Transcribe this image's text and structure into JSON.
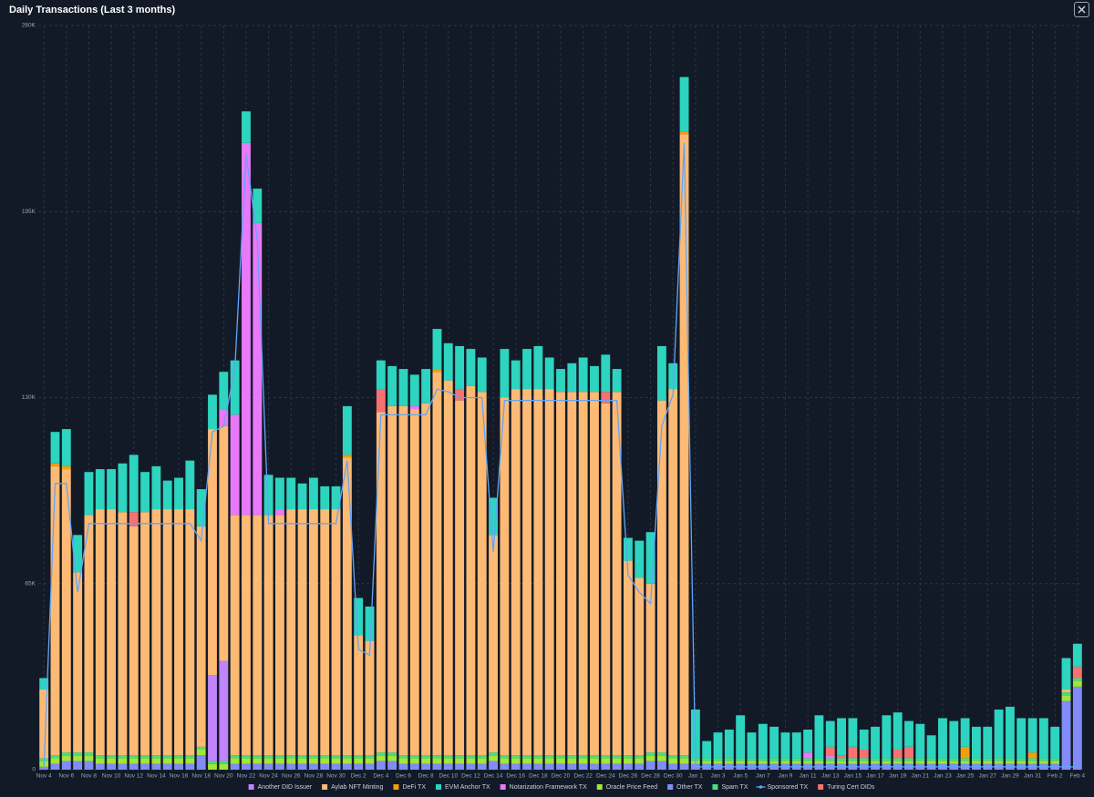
{
  "chart_data": {
    "type": "bar",
    "stacked": true,
    "title": "Daily Transactions (Last 3 months)",
    "categories": [
      "Nov 4",
      null,
      "Nov 6",
      null,
      "Nov 8",
      null,
      "Nov 10",
      null,
      "Nov 12",
      null,
      "Nov 14",
      null,
      "Nov 16",
      null,
      "Nov 18",
      null,
      "Nov 20",
      null,
      "Nov 22",
      null,
      "Nov 24",
      null,
      "Nov 26",
      null,
      "Nov 28",
      null,
      "Nov 30",
      null,
      "Dec 2",
      null,
      "Dec 4",
      null,
      "Dec 6",
      null,
      "Dec 8",
      null,
      "Dec 10",
      null,
      "Dec 12",
      null,
      "Dec 14",
      null,
      "Dec 16",
      null,
      "Dec 18",
      null,
      "Dec 20",
      null,
      "Dec 22",
      null,
      "Dec 24",
      null,
      "Dec 26",
      null,
      "Dec 28",
      null,
      "Dec 30",
      null,
      "Jan 1",
      null,
      "Jan 3",
      null,
      "Jan 5",
      null,
      "Jan 7",
      null,
      "Jan 9",
      null,
      "Jan 11",
      null,
      "Jan 13",
      null,
      "Jan 15",
      null,
      "Jan 17",
      null,
      "Jan 19",
      null,
      "Jan 21",
      null,
      "Jan 23",
      null,
      "Jan 25",
      null,
      "Jan 27",
      null,
      "Jan 29",
      null,
      "Jan 31",
      null,
      "Feb 2",
      null,
      "Feb 4"
    ],
    "ylim": [
      0,
      260
    ],
    "yticks": [
      0,
      {
        "value": 65,
        "label": "65K"
      },
      {
        "value": 130,
        "label": "130K"
      },
      {
        "value": 195,
        "label": "195K"
      },
      {
        "value": 260,
        "label": "260K"
      }
    ],
    "grid": true,
    "legend": "bottom",
    "series": [
      {
        "name": "Another DID Issuer",
        "color": "#c084fc",
        "values": [
          0,
          0,
          0,
          0,
          0,
          0,
          0,
          0,
          0,
          0,
          0,
          0,
          0,
          0,
          0,
          30,
          35,
          0,
          0,
          0,
          0,
          0,
          0,
          0,
          0,
          0,
          0,
          0,
          0,
          0,
          0,
          0,
          0,
          0,
          0,
          0,
          0,
          0,
          0,
          0,
          0,
          0,
          0,
          0,
          0,
          0,
          0,
          0,
          0,
          0,
          0,
          0,
          0,
          0,
          0,
          0,
          0,
          0,
          0,
          0,
          0,
          0,
          0,
          0,
          0,
          0,
          0,
          0,
          0,
          0,
          0,
          0,
          0,
          0,
          0,
          0,
          0,
          0,
          0,
          0,
          0,
          0,
          0,
          0,
          0,
          0,
          0,
          0,
          0,
          0,
          0,
          0,
          0
        ]
      },
      {
        "name": "Aylab NFT Minting",
        "color": "#fdba74",
        "values": [
          24,
          101,
          99,
          63,
          83,
          86,
          86,
          85,
          80,
          85,
          86,
          86,
          86,
          86,
          77,
          86,
          82,
          84,
          84,
          84,
          84,
          84,
          86,
          86,
          86,
          86,
          86,
          104,
          42,
          40,
          119,
          121,
          122,
          121,
          123,
          134,
          131,
          124,
          129,
          127,
          76,
          125,
          128,
          128,
          128,
          128,
          127,
          127,
          127,
          127,
          123,
          127,
          68,
          62,
          59,
          123,
          128,
          217,
          0,
          0,
          0,
          0,
          0,
          0,
          0,
          0,
          0,
          0,
          0,
          0,
          0,
          0,
          0,
          0,
          0,
          0,
          0,
          0,
          0,
          0,
          0,
          0,
          0,
          0,
          0,
          0,
          0,
          0,
          0,
          0,
          0,
          1,
          0
        ]
      },
      {
        "name": "DeFi TX",
        "color": "#f59e0b",
        "values": [
          0,
          1,
          1,
          0,
          0,
          0,
          0,
          0,
          0,
          0,
          0,
          0,
          0,
          0,
          0,
          0,
          0,
          0,
          0,
          0,
          0,
          0,
          0,
          0,
          0,
          0,
          0,
          1,
          0,
          0,
          0,
          0,
          0,
          0,
          0,
          1,
          0,
          0,
          0,
          0,
          0,
          0,
          0,
          0,
          0,
          0,
          0,
          0,
          0,
          0,
          0,
          0,
          0,
          0,
          0,
          0,
          0,
          1,
          0,
          0,
          0,
          0,
          0,
          0,
          0,
          0,
          0,
          0,
          0,
          0,
          0,
          0,
          0,
          0,
          0,
          0,
          0,
          0,
          0,
          0,
          0,
          0,
          4,
          0,
          0,
          0,
          0,
          0,
          2,
          0,
          0,
          0,
          0
        ]
      },
      {
        "name": "EVM Anchor TX",
        "color": "#2dd4bf",
        "values": [
          4,
          11,
          13,
          13,
          15,
          14,
          14,
          17,
          20,
          14,
          15,
          10,
          11,
          17,
          13,
          12,
          13,
          19,
          11,
          12,
          14,
          11,
          11,
          9,
          11,
          8,
          8,
          17,
          13,
          12,
          10,
          14,
          13,
          11,
          12,
          14,
          13,
          15,
          13,
          12,
          13,
          17,
          10,
          14,
          15,
          11,
          8,
          10,
          12,
          9,
          13,
          8,
          8,
          13,
          18,
          19,
          9,
          19,
          17,
          6,
          9,
          10,
          15,
          9,
          12,
          11,
          9,
          9,
          8,
          15,
          9,
          13,
          10,
          7,
          11,
          15,
          13,
          9,
          12,
          8,
          14,
          13,
          10,
          11,
          11,
          17,
          18,
          14,
          12,
          14,
          11,
          11,
          8
        ]
      },
      {
        "name": "Notarization Framework TX",
        "color": "#e879f9",
        "values": [
          0,
          0,
          0,
          0,
          0,
          0,
          0,
          0,
          0,
          0,
          0,
          0,
          0,
          0,
          0,
          0,
          6,
          35,
          130,
          102,
          0,
          2,
          0,
          0,
          0,
          0,
          0,
          0,
          0,
          0,
          0,
          0,
          0,
          1,
          0,
          0,
          0,
          0,
          0,
          0,
          0,
          0,
          0,
          0,
          0,
          0,
          0,
          0,
          0,
          0,
          0,
          0,
          0,
          0,
          0,
          0,
          0,
          0,
          0,
          0,
          0,
          0,
          0,
          0,
          0,
          0,
          0,
          0,
          2,
          0,
          1,
          0,
          0,
          0,
          0,
          0,
          0,
          0,
          0,
          0,
          0,
          0,
          0,
          0,
          0,
          0,
          0,
          0,
          0,
          0,
          0,
          0,
          0
        ]
      },
      {
        "name": "Oracle Price Feed",
        "color": "#a3e635",
        "values": [
          2,
          2,
          2,
          2,
          2,
          2,
          2,
          2,
          2,
          2,
          2,
          2,
          2,
          2,
          2,
          2,
          2,
          2,
          2,
          2,
          2,
          2,
          2,
          2,
          2,
          2,
          2,
          2,
          2,
          2,
          2,
          2,
          2,
          2,
          2,
          2,
          2,
          2,
          2,
          2,
          2,
          2,
          2,
          2,
          2,
          2,
          2,
          2,
          2,
          2,
          2,
          2,
          2,
          2,
          2,
          2,
          2,
          2,
          1,
          1,
          1,
          1,
          1,
          1,
          1,
          1,
          1,
          1,
          1,
          1,
          1,
          1,
          1,
          1,
          1,
          1,
          1,
          1,
          1,
          1,
          1,
          1,
          1,
          1,
          1,
          1,
          1,
          1,
          1,
          1,
          1,
          2,
          2
        ]
      },
      {
        "name": "Other TX",
        "color": "#818cf8",
        "values": [
          1,
          2,
          3,
          3,
          3,
          2,
          2,
          2,
          2,
          2,
          2,
          2,
          2,
          2,
          5,
          0,
          0,
          2,
          2,
          2,
          2,
          2,
          2,
          2,
          2,
          2,
          2,
          2,
          2,
          2,
          3,
          3,
          2,
          2,
          2,
          2,
          2,
          2,
          2,
          2,
          3,
          2,
          2,
          2,
          2,
          2,
          2,
          2,
          2,
          2,
          2,
          2,
          2,
          2,
          3,
          3,
          2,
          2,
          2,
          2,
          2,
          2,
          2,
          2,
          2,
          2,
          2,
          2,
          2,
          2,
          2,
          2,
          2,
          2,
          2,
          2,
          2,
          2,
          2,
          2,
          2,
          2,
          2,
          2,
          2,
          2,
          2,
          2,
          2,
          2,
          2,
          24,
          29
        ]
      },
      {
        "name": "Spam TX",
        "color": "#4ade80",
        "values": [
          1,
          1,
          1,
          1,
          1,
          1,
          1,
          1,
          1,
          1,
          1,
          1,
          1,
          1,
          1,
          1,
          1,
          1,
          1,
          1,
          1,
          1,
          1,
          1,
          1,
          1,
          1,
          1,
          1,
          1,
          1,
          1,
          1,
          1,
          1,
          1,
          1,
          1,
          1,
          1,
          1,
          1,
          1,
          1,
          1,
          1,
          1,
          1,
          1,
          1,
          1,
          1,
          1,
          1,
          1,
          1,
          1,
          1,
          1,
          1,
          1,
          1,
          1,
          1,
          1,
          1,
          1,
          1,
          1,
          1,
          1,
          1,
          1,
          1,
          1,
          1,
          1,
          1,
          1,
          1,
          1,
          1,
          1,
          1,
          1,
          1,
          1,
          1,
          1,
          1,
          1,
          1,
          1
        ]
      },
      {
        "name": "Sponsored TX",
        "color": "#60a5fa",
        "type": "line",
        "values": [
          1,
          100,
          100,
          62,
          86,
          86,
          86,
          86,
          86,
          86,
          86,
          86,
          86,
          86,
          80,
          118,
          120,
          140,
          215,
          185,
          86,
          86,
          86,
          86,
          86,
          86,
          86,
          108,
          42,
          40,
          124,
          124,
          124,
          124,
          124,
          133,
          132,
          130,
          130,
          130,
          76,
          129,
          129,
          129,
          129,
          129,
          129,
          129,
          129,
          129,
          129,
          129,
          68,
          62,
          58,
          120,
          131,
          219,
          1,
          1,
          1,
          1,
          1,
          1,
          1,
          1,
          1,
          1,
          1,
          1,
          1,
          1,
          1,
          1,
          1,
          1,
          1,
          1,
          1,
          1,
          1,
          1,
          1,
          1,
          1,
          1,
          1,
          1,
          1,
          1,
          1,
          1,
          1
        ]
      },
      {
        "name": "Turing Cert DIDs",
        "color": "#f87171",
        "values": [
          0,
          0,
          0,
          0,
          0,
          0,
          0,
          0,
          5,
          0,
          0,
          0,
          0,
          0,
          0,
          0,
          0,
          0,
          0,
          0,
          0,
          0,
          0,
          0,
          0,
          0,
          0,
          0,
          0,
          0,
          8,
          0,
          0,
          0,
          0,
          0,
          0,
          4,
          0,
          0,
          0,
          0,
          0,
          0,
          0,
          0,
          0,
          0,
          0,
          0,
          4,
          0,
          0,
          0,
          0,
          0,
          0,
          0,
          0,
          0,
          0,
          0,
          0,
          0,
          0,
          0,
          0,
          0,
          0,
          0,
          3,
          1,
          4,
          3,
          0,
          0,
          3,
          4,
          0,
          0,
          0,
          0,
          0,
          0,
          0,
          0,
          0,
          0,
          0,
          0,
          0,
          0,
          4
        ]
      }
    ]
  }
}
